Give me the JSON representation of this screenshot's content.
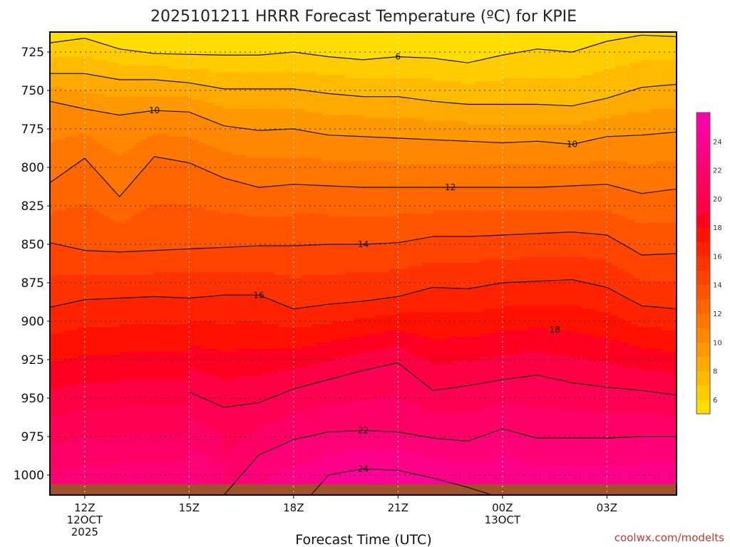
{
  "chart_data": {
    "type": "heatmap",
    "title": "2025101211 HRRR Forecast Temperature (ºC) for KPIE",
    "xlabel": "Forecast Time (UTC)",
    "ylabel": "",
    "credit": "coolwx.com/modelts",
    "x_ticks": [
      {
        "hour": 12,
        "lines": [
          "12Z",
          "12OCT",
          "2025"
        ]
      },
      {
        "hour": 15,
        "lines": [
          "15Z"
        ]
      },
      {
        "hour": 18,
        "lines": [
          "18Z"
        ]
      },
      {
        "hour": 21,
        "lines": [
          "21Z"
        ]
      },
      {
        "hour": 24,
        "lines": [
          "00Z",
          "13OCT"
        ]
      },
      {
        "hour": 27,
        "lines": [
          "03Z"
        ]
      }
    ],
    "xlim": [
      11,
      29
    ],
    "y_ticks": [
      725,
      750,
      775,
      800,
      825,
      850,
      875,
      900,
      925,
      950,
      975,
      1000
    ],
    "ylim": [
      712,
      1013
    ],
    "surface_pressure": 1006,
    "colorbar": {
      "ticks": [
        6,
        8,
        10,
        12,
        14,
        16,
        18,
        20,
        22,
        24
      ],
      "bins": [
        {
          "from": 5,
          "to": 6,
          "color": "#ffdd00"
        },
        {
          "from": 6,
          "to": 7,
          "color": "#ffcc00"
        },
        {
          "from": 7,
          "to": 8,
          "color": "#ffbb00"
        },
        {
          "from": 8,
          "to": 9,
          "color": "#ffaa00"
        },
        {
          "from": 9,
          "to": 10,
          "color": "#ff9900"
        },
        {
          "from": 10,
          "to": 11,
          "color": "#ff8800"
        },
        {
          "from": 11,
          "to": 12,
          "color": "#ff7700"
        },
        {
          "from": 12,
          "to": 13,
          "color": "#ff6600"
        },
        {
          "from": 13,
          "to": 14,
          "color": "#ff5500"
        },
        {
          "from": 14,
          "to": 15,
          "color": "#ff4400"
        },
        {
          "from": 15,
          "to": 16,
          "color": "#ff3300"
        },
        {
          "from": 16,
          "to": 17,
          "color": "#ff2200"
        },
        {
          "from": 17,
          "to": 18,
          "color": "#ff1100"
        },
        {
          "from": 18,
          "to": 19,
          "color": "#ff0022"
        },
        {
          "from": 19,
          "to": 20,
          "color": "#ff0044"
        },
        {
          "from": 20,
          "to": 21,
          "color": "#ff0055"
        },
        {
          "from": 21,
          "to": 22,
          "color": "#ff0066"
        },
        {
          "from": 22,
          "to": 23,
          "color": "#ff0077"
        },
        {
          "from": 23,
          "to": 24,
          "color": "#ff0088"
        },
        {
          "from": 24,
          "to": 25,
          "color": "#ff0099"
        },
        {
          "from": 25,
          "to": 26,
          "color": "#ff00aa"
        }
      ]
    },
    "contours": [
      {
        "level": 6,
        "label": "6",
        "label_at": 21.0,
        "points": [
          [
            11,
            719
          ],
          [
            12,
            716
          ],
          [
            13,
            723
          ],
          [
            14,
            726
          ],
          [
            15,
            726.5
          ],
          [
            16,
            727
          ],
          [
            17,
            727
          ],
          [
            18,
            725
          ],
          [
            19,
            728
          ],
          [
            20,
            730
          ],
          [
            21,
            728
          ],
          [
            22,
            729
          ],
          [
            23,
            732
          ],
          [
            24,
            727
          ],
          [
            25,
            723
          ],
          [
            26,
            725
          ],
          [
            27,
            718
          ],
          [
            28,
            714
          ],
          [
            29,
            715
          ]
        ]
      },
      {
        "level": 8,
        "label": "",
        "points": [
          [
            11,
            739
          ],
          [
            12,
            739
          ],
          [
            13,
            743
          ],
          [
            14,
            743
          ],
          [
            15,
            745
          ],
          [
            16,
            749
          ],
          [
            17,
            749
          ],
          [
            18,
            749
          ],
          [
            19,
            752
          ],
          [
            20,
            754
          ],
          [
            21,
            754
          ],
          [
            22,
            757
          ],
          [
            23,
            759
          ],
          [
            24,
            759
          ],
          [
            25,
            759
          ],
          [
            26,
            760
          ],
          [
            27,
            755
          ],
          [
            28,
            748
          ],
          [
            29,
            746
          ]
        ]
      },
      {
        "level": 10,
        "label": "10",
        "label_at": 14.0,
        "points": [
          [
            11,
            757
          ],
          [
            12,
            762
          ],
          [
            13,
            766
          ],
          [
            14,
            763
          ],
          [
            15,
            764
          ],
          [
            16,
            773
          ],
          [
            17,
            776
          ],
          [
            18,
            775
          ],
          [
            19,
            779
          ],
          [
            20,
            780
          ],
          [
            21,
            781
          ],
          [
            22,
            782
          ],
          [
            23,
            783
          ],
          [
            24,
            784
          ],
          [
            25,
            783
          ],
          [
            26,
            785
          ],
          [
            27,
            780
          ],
          [
            28,
            779
          ],
          [
            29,
            777
          ]
        ]
      },
      {
        "level": 10,
        "label": "10",
        "label_at": 26.0,
        "points": []
      },
      {
        "level": 12,
        "label": "12",
        "label_at": 22.5,
        "points": [
          [
            11,
            810
          ],
          [
            12,
            794
          ],
          [
            13,
            819
          ],
          [
            14,
            793
          ],
          [
            15,
            797
          ],
          [
            16,
            807
          ],
          [
            17,
            813
          ],
          [
            18,
            811
          ],
          [
            19,
            812
          ],
          [
            20,
            813
          ],
          [
            21,
            813
          ],
          [
            22,
            813
          ],
          [
            23,
            813
          ],
          [
            24,
            813
          ],
          [
            25,
            813
          ],
          [
            26,
            812
          ],
          [
            27,
            811
          ],
          [
            28,
            817
          ],
          [
            29,
            814
          ]
        ]
      },
      {
        "level": 14,
        "label": "14",
        "label_at": 20.0,
        "points": [
          [
            11,
            849
          ],
          [
            12,
            854
          ],
          [
            13,
            855
          ],
          [
            14,
            854
          ],
          [
            15,
            853
          ],
          [
            16,
            852
          ],
          [
            17,
            851
          ],
          [
            18,
            851
          ],
          [
            19,
            850
          ],
          [
            20,
            850
          ],
          [
            21,
            849
          ],
          [
            22,
            845
          ],
          [
            23,
            845
          ],
          [
            24,
            844
          ],
          [
            25,
            843
          ],
          [
            26,
            842
          ],
          [
            27,
            844
          ],
          [
            28,
            857
          ],
          [
            29,
            856
          ]
        ]
      },
      {
        "level": 16,
        "label": "16",
        "label_at": 17.0,
        "points": [
          [
            11,
            891
          ],
          [
            12,
            886
          ],
          [
            13,
            885
          ],
          [
            14,
            884
          ],
          [
            15,
            885
          ],
          [
            16,
            883
          ],
          [
            17,
            883
          ],
          [
            18,
            892
          ],
          [
            19,
            889
          ],
          [
            20,
            887
          ],
          [
            21,
            884
          ],
          [
            22,
            878
          ],
          [
            23,
            879
          ],
          [
            24,
            875
          ],
          [
            25,
            874
          ],
          [
            26,
            873
          ],
          [
            27,
            878
          ],
          [
            28,
            890
          ],
          [
            29,
            892
          ]
        ]
      },
      {
        "level": 18,
        "label": "18",
        "label_at": 25.5,
        "points": [
          [
            11,
            null
          ],
          [
            12,
            null
          ],
          [
            13,
            null
          ],
          [
            14,
            null
          ],
          [
            15,
            null
          ],
          [
            16,
            null
          ],
          [
            17,
            null
          ],
          [
            18,
            null
          ],
          [
            19,
            null
          ],
          [
            20,
            null
          ],
          [
            21,
            null
          ],
          [
            22,
            null
          ],
          [
            23,
            null
          ],
          [
            24,
            null
          ],
          [
            25,
            null
          ],
          [
            26,
            null
          ],
          [
            27,
            null
          ],
          [
            28,
            null
          ],
          [
            29,
            null
          ]
        ]
      },
      {
        "level": 20,
        "label": "",
        "points": [
          [
            15,
            946
          ],
          [
            16,
            956
          ],
          [
            17,
            953
          ],
          [
            18,
            944
          ],
          [
            19,
            938
          ],
          [
            20,
            932
          ],
          [
            21,
            927
          ],
          [
            22,
            945
          ],
          [
            23,
            942
          ],
          [
            24,
            938
          ],
          [
            25,
            935
          ],
          [
            26,
            940
          ],
          [
            27,
            943
          ],
          [
            28,
            945
          ],
          [
            29,
            948
          ]
        ]
      },
      {
        "level": 22,
        "label": "22",
        "label_at": 20.0,
        "points": [
          [
            16,
            1013
          ],
          [
            17,
            987
          ],
          [
            18,
            977
          ],
          [
            19,
            972
          ],
          [
            20,
            971
          ],
          [
            21,
            972
          ],
          [
            22,
            976
          ],
          [
            23,
            978
          ],
          [
            24,
            970
          ],
          [
            25,
            976
          ],
          [
            26,
            976
          ],
          [
            27,
            976
          ],
          [
            28,
            975
          ],
          [
            29,
            975
          ]
        ]
      },
      {
        "level": 24,
        "label": "24",
        "label_at": 20.0,
        "points": [
          [
            18.5,
            1013
          ],
          [
            19,
            1000
          ],
          [
            20,
            996
          ],
          [
            21,
            997
          ],
          [
            22,
            1002
          ],
          [
            23,
            1008
          ],
          [
            23.7,
            1013
          ]
        ]
      }
    ],
    "notes": "Filled pressure-time cross section; colors by temperature bin."
  }
}
